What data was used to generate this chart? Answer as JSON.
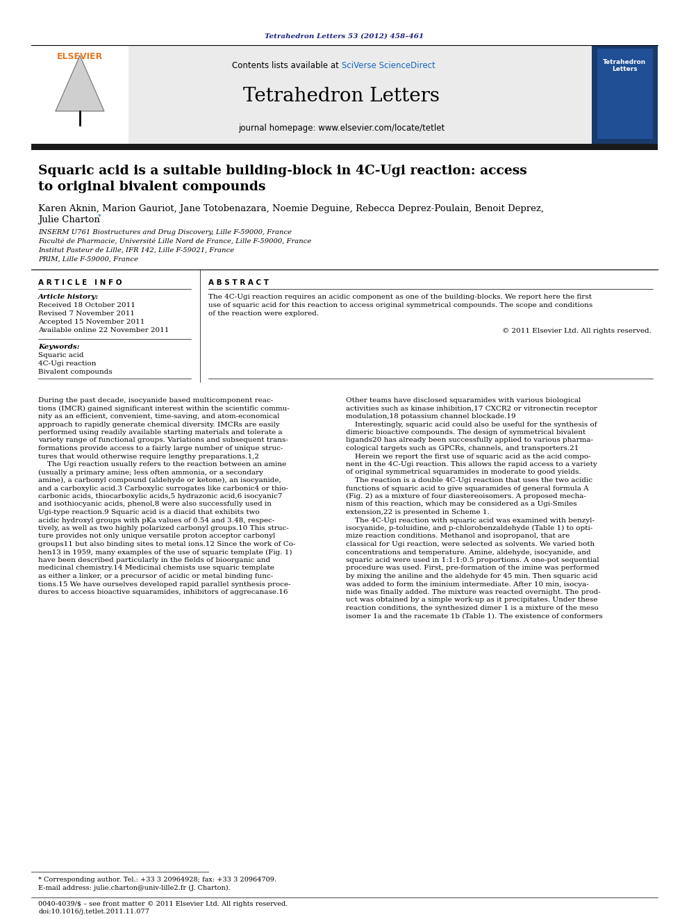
{
  "bg_color": "#ffffff",
  "page_width": 9.92,
  "page_height": 13.23,
  "journal_ref": "Tetrahedron Letters 53 (2012) 458–461",
  "journal_ref_color": "#1a237e",
  "header_bg": "#e8e8e8",
  "header_contents": "Contents lists available at",
  "header_sciverse": "SciVerse ScienceDirect",
  "header_sciverse_color": "#1565c0",
  "journal_name": "Tetrahedron Letters",
  "journal_homepage": "journal homepage: www.elsevier.com/locate/tetlet",
  "title_line1": "Squaric acid is a suitable building-block in 4C-Ugi reaction: access",
  "title_line2": "to original bivalent compounds",
  "authors_line1": "Karen Aknin, Marion Gauriot, Jane Totobenazara, Noemie Deguine, Rebecca Deprez-Poulain, Benoit Deprez,",
  "authors_line2": "Julie Charton",
  "authors_star": " *",
  "affil1": "INSERM U761 Biostructures and Drug Discovery, Lille F-59000, France",
  "affil2": "Faculté de Pharmacie, Université Lille Nord de France, Lille F-59000, France",
  "affil3": "Institut Pasteur de Lille, IFR 142, Lille F-59021, France",
  "affil4": "PRIM, Lille F-59000, France",
  "section_article_info": "A R T I C L E   I N F O",
  "section_abstract": "A B S T R A C T",
  "article_history_label": "Article history:",
  "received": "Received 18 October 2011",
  "revised": "Revised 7 November 2011",
  "accepted": "Accepted 15 November 2011",
  "available": "Available online 22 November 2011",
  "keywords_label": "Keywords:",
  "kw1": "Squaric acid",
  "kw2": "4C-Ugi reaction",
  "kw3": "Bivalent compounds",
  "abstract_text_l1": "The 4C-Ugi reaction requires an acidic component as one of the building-blocks. We report here the first",
  "abstract_text_l2": "use of squaric acid for this reaction to access original symmetrical compounds. The scope and conditions",
  "abstract_text_l3": "of the reaction were explored.",
  "copyright": "© 2011 Elsevier Ltd. All rights reserved.",
  "footer_left": "0040-4039/$ – see front matter © 2011 Elsevier Ltd. All rights reserved.",
  "footer_doi": "doi:10.1016/j.tetlet.2011.11.077",
  "footnote_star": "* Corresponding author. Tel.: +33 3 20964928; fax: +33 3 20964709.",
  "footnote_email": "E-mail address: julie.charton@univ-lille2.fr (J. Charton).",
  "dark_bar_color": "#1a1a1a",
  "elsevier_orange": "#e87722",
  "link_color": "#1565c0",
  "body_col1_lines": [
    "During the past decade, isocyanide based multicomponent reac-",
    "tions (IMCR) gained significant interest within the scientific commu-",
    "nity as an efficient, convenient, time-saving, and atom-economical",
    "approach to rapidly generate chemical diversity. IMCRs are easily",
    "performed using readily available starting materials and tolerate a",
    "variety range of functional groups. Variations and subsequent trans-",
    "formations provide access to a fairly large number of unique struc-",
    "tures that would otherwise require lengthy preparations.1,2",
    "    The Ugi reaction usually refers to the reaction between an amine",
    "(usually a primary amine; less often ammonia, or a secondary",
    "amine), a carbonyl compound (aldehyde or ketone), an isocyanide,",
    "and a carboxylic acid.3 Carboxylic surrogates like carbonic4 or thio-",
    "carbonic acids, thiocarboxylic acids,5 hydrazonic acid,6 isocyanic7",
    "and isothiocyanic acids, phenol,8 were also successfully used in",
    "Ugi-type reaction.9 Squaric acid is a diacid that exhibits two",
    "acidic hydroxyl groups with pKa values of 0.54 and 3.48, respec-",
    "tively, as well as two highly polarized carbonyl groups.10 This struc-",
    "ture provides not only unique versatile proton acceptor carbonyl",
    "groups11 but also binding sites to metal ions.12 Since the work of Co-",
    "hen13 in 1959, many examples of the use of squaric template (Fig. 1)",
    "have been described particularly in the fields of bioorganic and",
    "medicinal chemistry.14 Medicinal chemists use squaric template",
    "as either a linker, or a precursor of acidic or metal binding func-",
    "tions.15 We have ourselves developed rapid parallel synthesis proce-",
    "dures to access bioactive squaramides, inhibitors of aggrecanase.16"
  ],
  "body_col2_lines": [
    "Other teams have disclosed squaramides with various biological",
    "activities such as kinase inhibition,17 CXCR2 or vitronectin receptor",
    "modulation,18 potassium channel blockade.19",
    "    Interestingly, squaric acid could also be useful for the synthesis of",
    "dimeric bioactive compounds. The design of symmetrical bivalent",
    "ligands20 has already been successfully applied to various pharma-",
    "cological targets such as GPCRs, channels, and transporters.21",
    "    Herein we report the first use of squaric acid as the acid compo-",
    "nent in the 4C-Ugi reaction. This allows the rapid access to a variety",
    "of original symmetrical squaramides in moderate to good yields.",
    "    The reaction is a double 4C-Ugi reaction that uses the two acidic",
    "functions of squaric acid to give squaramides of general formula A",
    "(Fig. 2) as a mixture of four diastereoisomers. A proposed mecha-",
    "nism of this reaction, which may be considered as a Ugi-Smiles",
    "extension,22 is presented in Scheme 1.",
    "    The 4C-Ugi reaction with squaric acid was examined with benzyl-",
    "isocyanide, p-toluidine, and p-chlorobenzaldehyde (Table 1) to opti-",
    "mize reaction conditions. Methanol and isopropanol, that are",
    "classical for Ugi reaction, were selected as solvents. We varied both",
    "concentrations and temperature. Amine, aldehyde, isocyanide, and",
    "squaric acid were used in 1:1:1:0.5 proportions. A one-pot sequential",
    "procedure was used. First, pre-formation of the imine was performed",
    "by mixing the aniline and the aldehyde for 45 min. Then squaric acid",
    "was added to form the iminium intermediate. After 10 min, isocya-",
    "nide was finally added. The mixture was reacted overnight. The prod-",
    "uct was obtained by a simple work-up as it precipitates. Under these",
    "reaction conditions, the synthesized dimer 1 is a mixture of the meso",
    "isomer 1a and the racemate 1b (Table 1). The existence of conformers"
  ]
}
